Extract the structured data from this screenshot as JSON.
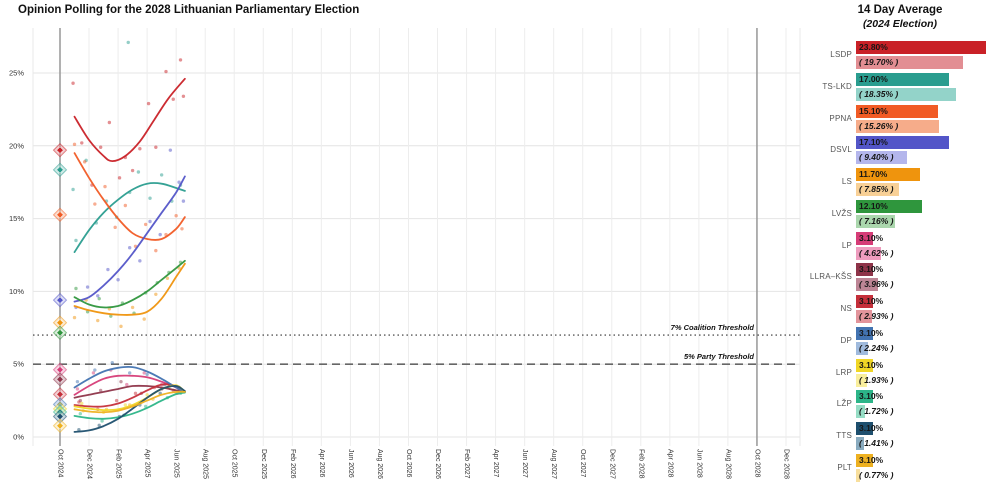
{
  "title": "Opinion Polling for the 2028 Lithuanian Parliamentary Election",
  "legend_panel": {
    "header_line1": "14 Day Average",
    "header_line2": "(2024 Election)"
  },
  "chart_data": {
    "type": "line",
    "title": "Opinion Polling for the 2028 Lithuanian Parliamentary Election",
    "x_axis": {
      "tick_labels": [
        "Oct 2024",
        "Dec 2024",
        "Feb 2025",
        "Apr 2025",
        "Jun 2025",
        "Aug 2025",
        "Oct 2025",
        "Dec 2025",
        "Feb 2026",
        "Apr 2026",
        "Jun 2026",
        "Aug 2026",
        "Oct 2026",
        "Dec 2026",
        "Feb 2027",
        "Apr 2027",
        "Jun 2027",
        "Aug 2027",
        "Oct 2027",
        "Dec 2027",
        "Feb 2028",
        "Apr 2028",
        "Jun 2028",
        "Aug 2028",
        "Oct 2028",
        "Dec 2028"
      ],
      "months_per_tick": 2
    },
    "y_axis": {
      "tick_labels": [
        "0%",
        "5%",
        "10%",
        "15%",
        "20%",
        "25%"
      ],
      "tick_values": [
        0,
        5,
        10,
        15,
        20,
        25
      ],
      "range": [
        0,
        28
      ]
    },
    "grid": true,
    "election_vlines_month_offsets": [
      0,
      48
    ],
    "thresholds": [
      {
        "label": "7% Coalition Threshold",
        "value": 7,
        "style": "dotted"
      },
      {
        "label": "5% Party Threshold",
        "value": 5,
        "style": "dashed"
      }
    ],
    "parties": [
      {
        "name": "LSDP",
        "color": "#c92127",
        "light_color": "#e28e93",
        "avg": 23.8,
        "avg_label": "23.80%",
        "election": 19.7,
        "election_label": "( 19.70% )",
        "trend": [
          [
            1,
            22.0
          ],
          [
            2,
            20.4
          ],
          [
            3,
            19.3
          ],
          [
            3.6,
            18.95
          ],
          [
            4.5,
            19.3
          ],
          [
            5.5,
            20.3
          ],
          [
            6.5,
            21.8
          ],
          [
            7.5,
            23.3
          ],
          [
            8.6,
            24.6
          ]
        ],
        "polls": [
          [
            0.9,
            24.3
          ],
          [
            1.5,
            20.2
          ],
          [
            2.2,
            17.3
          ],
          [
            2.8,
            19.9
          ],
          [
            3.4,
            21.6
          ],
          [
            4.1,
            17.8
          ],
          [
            4.5,
            19.2
          ],
          [
            5.0,
            18.3
          ],
          [
            5.5,
            19.8
          ],
          [
            6.1,
            22.9
          ],
          [
            6.6,
            19.9
          ],
          [
            7.3,
            25.1
          ],
          [
            7.8,
            23.2
          ],
          [
            8.3,
            25.9
          ],
          [
            8.5,
            23.4
          ]
        ]
      },
      {
        "name": "TS-LKD",
        "color": "#2a9d8f",
        "light_color": "#93d3c9",
        "avg": 17.0,
        "avg_label": "17.00%",
        "election": 18.35,
        "election_label": "( 18.35% )",
        "trend": [
          [
            1,
            12.7
          ],
          [
            2,
            14.2
          ],
          [
            3,
            15.4
          ],
          [
            4,
            16.3
          ],
          [
            5,
            17.0
          ],
          [
            6,
            17.4
          ],
          [
            7,
            17.4
          ],
          [
            8,
            17.1
          ],
          [
            8.6,
            16.9
          ]
        ],
        "polls": [
          [
            0.9,
            17.0
          ],
          [
            1.1,
            13.5
          ],
          [
            1.8,
            19.0
          ],
          [
            2.5,
            14.7
          ],
          [
            3.2,
            16.2
          ],
          [
            3.9,
            15.1
          ],
          [
            4.7,
            27.1
          ],
          [
            4.8,
            16.8
          ],
          [
            5.4,
            18.2
          ],
          [
            6.2,
            16.4
          ],
          [
            7.0,
            18.0
          ],
          [
            7.7,
            16.2
          ],
          [
            8.3,
            17.3
          ]
        ]
      },
      {
        "name": "PPNA",
        "color": "#f15b25",
        "light_color": "#f6ac8a",
        "avg": 15.1,
        "avg_label": "15.10%",
        "election": 15.26,
        "election_label": "( 15.26% )",
        "trend": [
          [
            1,
            19.5
          ],
          [
            2,
            17.8
          ],
          [
            3,
            16.3
          ],
          [
            4,
            15.0
          ],
          [
            5,
            14.0
          ],
          [
            6,
            13.6
          ],
          [
            7,
            13.6
          ],
          [
            8,
            14.3
          ],
          [
            8.6,
            15.1
          ]
        ],
        "polls": [
          [
            1.0,
            20.1
          ],
          [
            1.7,
            18.9
          ],
          [
            2.4,
            16.0
          ],
          [
            3.1,
            17.2
          ],
          [
            3.8,
            14.4
          ],
          [
            4.5,
            15.9
          ],
          [
            5.2,
            13.1
          ],
          [
            5.9,
            14.6
          ],
          [
            6.6,
            12.8
          ],
          [
            7.3,
            13.9
          ],
          [
            8.0,
            15.2
          ],
          [
            8.4,
            14.3
          ]
        ]
      },
      {
        "name": "DSVL",
        "color": "#5355c8",
        "light_color": "#b4b6ec",
        "avg": 17.1,
        "avg_label": "17.10%",
        "election": 9.4,
        "election_label": "( 9.40% )",
        "trend": [
          [
            1,
            9.3
          ],
          [
            2,
            9.6
          ],
          [
            3,
            10.4
          ],
          [
            4,
            11.4
          ],
          [
            5,
            12.6
          ],
          [
            6,
            14.0
          ],
          [
            7,
            15.4
          ],
          [
            8,
            16.8
          ],
          [
            8.6,
            17.9
          ]
        ],
        "polls": [
          [
            1.1,
            8.9
          ],
          [
            1.9,
            10.3
          ],
          [
            2.6,
            9.7
          ],
          [
            3.3,
            11.5
          ],
          [
            4.0,
            10.8
          ],
          [
            4.8,
            13.0
          ],
          [
            5.5,
            12.1
          ],
          [
            6.2,
            14.8
          ],
          [
            6.9,
            13.9
          ],
          [
            7.6,
            19.7
          ],
          [
            8.2,
            17.5
          ],
          [
            8.5,
            16.2
          ]
        ]
      },
      {
        "name": "LS",
        "color": "#ef940d",
        "light_color": "#f8d096",
        "avg": 11.7,
        "avg_label": "11.70%",
        "election": 7.85,
        "election_label": "( 7.85% )",
        "trend": [
          [
            1,
            9.0
          ],
          [
            2,
            8.7
          ],
          [
            3,
            8.5
          ],
          [
            4,
            8.4
          ],
          [
            5,
            8.4
          ],
          [
            6,
            8.6
          ],
          [
            7,
            9.5
          ],
          [
            8,
            11.0
          ],
          [
            8.6,
            11.9
          ]
        ],
        "polls": [
          [
            1.0,
            8.2
          ],
          [
            1.8,
            9.4
          ],
          [
            2.6,
            8.0
          ],
          [
            3.4,
            8.8
          ],
          [
            4.2,
            7.6
          ],
          [
            5.0,
            8.9
          ],
          [
            5.8,
            8.1
          ],
          [
            6.6,
            9.8
          ],
          [
            7.4,
            10.9
          ],
          [
            8.2,
            11.6
          ]
        ]
      },
      {
        "name": "LVŽS",
        "color": "#2f963d",
        "light_color": "#abd7ad",
        "avg": 12.1,
        "avg_label": "12.10%",
        "election": 7.16,
        "election_label": "( 7.16% )",
        "trend": [
          [
            1,
            9.6
          ],
          [
            2,
            9.1
          ],
          [
            3,
            8.9
          ],
          [
            4,
            9.0
          ],
          [
            5,
            9.4
          ],
          [
            6,
            10.0
          ],
          [
            7,
            10.8
          ],
          [
            8,
            11.6
          ],
          [
            8.6,
            12.1
          ]
        ],
        "polls": [
          [
            1.1,
            10.2
          ],
          [
            1.9,
            8.6
          ],
          [
            2.7,
            9.5
          ],
          [
            3.5,
            8.3
          ],
          [
            4.3,
            9.2
          ],
          [
            5.1,
            8.5
          ],
          [
            5.9,
            9.9
          ],
          [
            6.7,
            10.6
          ],
          [
            7.5,
            11.3
          ],
          [
            8.3,
            12.0
          ]
        ]
      },
      {
        "name": "LP",
        "color": "#d63c77",
        "light_color": "#ee9cbe",
        "avg": 3.1,
        "avg_label": "3.10%",
        "election": 4.62,
        "election_label": "( 4.62% )",
        "trend": [
          [
            1,
            2.9
          ],
          [
            2,
            3.5
          ],
          [
            3,
            4.0
          ],
          [
            4,
            4.2
          ],
          [
            5,
            4.2
          ],
          [
            6,
            4.1
          ],
          [
            7,
            3.8
          ],
          [
            8,
            3.4
          ],
          [
            8.6,
            3.1
          ]
        ],
        "polls": [
          [
            1.2,
            3.3
          ],
          [
            2.3,
            4.4
          ],
          [
            3.5,
            4.6
          ],
          [
            4.6,
            3.6
          ],
          [
            5.8,
            4.4
          ],
          [
            7.0,
            3.6
          ],
          [
            8.1,
            3.0
          ]
        ]
      },
      {
        "name": "LLRA–KŠS",
        "color": "#8e3449",
        "light_color": "#bd8595",
        "avg": 3.1,
        "avg_label": "3.10%",
        "election": 3.96,
        "election_label": "( 3.96% )",
        "trend": [
          [
            1,
            2.7
          ],
          [
            2,
            2.9
          ],
          [
            3,
            3.1
          ],
          [
            4,
            3.3
          ],
          [
            5,
            3.5
          ],
          [
            6,
            3.5
          ],
          [
            7,
            3.4
          ],
          [
            8,
            3.2
          ],
          [
            8.6,
            3.1
          ]
        ],
        "polls": [
          [
            1.4,
            2.5
          ],
          [
            2.8,
            3.2
          ],
          [
            4.2,
            3.8
          ],
          [
            5.6,
            3.0
          ],
          [
            7.0,
            3.3
          ],
          [
            8.2,
            3.2
          ]
        ]
      },
      {
        "name": "NS",
        "color": "#c52f3a",
        "light_color": "#e2949b",
        "avg": 3.1,
        "avg_label": "3.10%",
        "election": 2.93,
        "election_label": "( 2.93% )",
        "trend": [
          [
            1,
            2.2
          ],
          [
            2,
            2.1
          ],
          [
            3,
            2.1
          ],
          [
            4,
            2.3
          ],
          [
            5,
            2.7
          ],
          [
            6,
            3.2
          ],
          [
            7,
            3.6
          ],
          [
            8,
            3.5
          ],
          [
            8.6,
            3.1
          ]
        ],
        "polls": [
          [
            1.3,
            2.4
          ],
          [
            2.6,
            1.9
          ],
          [
            3.9,
            2.5
          ],
          [
            5.2,
            3.0
          ],
          [
            6.5,
            3.4
          ],
          [
            7.8,
            3.2
          ]
        ]
      },
      {
        "name": "DP",
        "color": "#4273b1",
        "light_color": "#9fbadd",
        "avg": 3.1,
        "avg_label": "3.10%",
        "election": 2.24,
        "election_label": "( 2.24% )",
        "trend": [
          [
            1,
            3.4
          ],
          [
            2,
            4.0
          ],
          [
            3,
            4.5
          ],
          [
            4,
            4.75
          ],
          [
            5,
            4.8
          ],
          [
            6,
            4.5
          ],
          [
            7,
            4.0
          ],
          [
            8,
            3.4
          ],
          [
            8.6,
            3.1
          ]
        ],
        "polls": [
          [
            1.2,
            3.8
          ],
          [
            2.4,
            4.6
          ],
          [
            3.6,
            5.1
          ],
          [
            4.8,
            4.4
          ],
          [
            6.0,
            4.3
          ],
          [
            7.2,
            3.6
          ],
          [
            8.2,
            3.3
          ]
        ]
      },
      {
        "name": "LRP",
        "color": "#f0d626",
        "light_color": "#f9ee9c",
        "avg": 3.1,
        "avg_label": "3.10%",
        "election": 1.93,
        "election_label": "( 1.93% )",
        "trend": [
          [
            1,
            2.1
          ],
          [
            2,
            1.95
          ],
          [
            3,
            1.85
          ],
          [
            4,
            1.9
          ],
          [
            5,
            2.2
          ],
          [
            6,
            2.7
          ],
          [
            7,
            3.3
          ],
          [
            8,
            3.55
          ],
          [
            8.6,
            3.1
          ]
        ],
        "polls": [
          [
            1.5,
            2.3
          ],
          [
            3.0,
            1.7
          ],
          [
            4.5,
            2.2
          ],
          [
            6.0,
            2.9
          ],
          [
            7.5,
            3.4
          ]
        ]
      },
      {
        "name": "LŽP",
        "color": "#2cb588",
        "light_color": "#96ddc5",
        "avg": 3.1,
        "avg_label": "3.10%",
        "election": 1.72,
        "election_label": "( 1.72% )",
        "trend": [
          [
            1,
            1.45
          ],
          [
            2,
            1.3
          ],
          [
            3,
            1.25
          ],
          [
            4,
            1.35
          ],
          [
            5,
            1.6
          ],
          [
            6,
            2.0
          ],
          [
            7,
            2.5
          ],
          [
            8,
            2.95
          ],
          [
            8.6,
            3.05
          ]
        ],
        "polls": [
          [
            1.4,
            1.6
          ],
          [
            2.9,
            1.1
          ],
          [
            4.4,
            1.5
          ],
          [
            5.9,
            2.1
          ],
          [
            7.4,
            2.7
          ],
          [
            8.3,
            3.0
          ]
        ]
      },
      {
        "name": "TTS",
        "color": "#1e4f6e",
        "light_color": "#89abbf",
        "avg": 3.1,
        "avg_label": "3.10%",
        "election": 1.41,
        "election_label": "( 1.41% )",
        "trend": [
          [
            1,
            0.35
          ],
          [
            2,
            0.45
          ],
          [
            3,
            0.75
          ],
          [
            4,
            1.25
          ],
          [
            5,
            1.95
          ],
          [
            6,
            2.7
          ],
          [
            7,
            3.3
          ],
          [
            8,
            3.5
          ],
          [
            8.6,
            3.15
          ]
        ],
        "polls": [
          [
            1.3,
            0.5
          ],
          [
            2.7,
            0.8
          ],
          [
            4.1,
            1.4
          ],
          [
            5.5,
            2.2
          ],
          [
            6.9,
            3.0
          ],
          [
            8.2,
            3.4
          ]
        ]
      },
      {
        "name": "PLT",
        "color": "#eeb121",
        "light_color": "#f8df9d",
        "avg": 3.1,
        "avg_label": "3.10%",
        "election": 0.77,
        "election_label": "( 0.77% )",
        "trend": [
          [
            1,
            1.9
          ],
          [
            2,
            1.75
          ],
          [
            3,
            1.7
          ],
          [
            4,
            1.8
          ],
          [
            5,
            2.1
          ],
          [
            6,
            2.5
          ],
          [
            7,
            2.9
          ],
          [
            8,
            3.1
          ],
          [
            8.6,
            3.1
          ]
        ],
        "polls": [
          [
            1.6,
            1.8
          ],
          [
            3.2,
            1.9
          ],
          [
            4.8,
            2.2
          ],
          [
            6.4,
            2.6
          ],
          [
            8.0,
            3.0
          ]
        ]
      }
    ]
  }
}
